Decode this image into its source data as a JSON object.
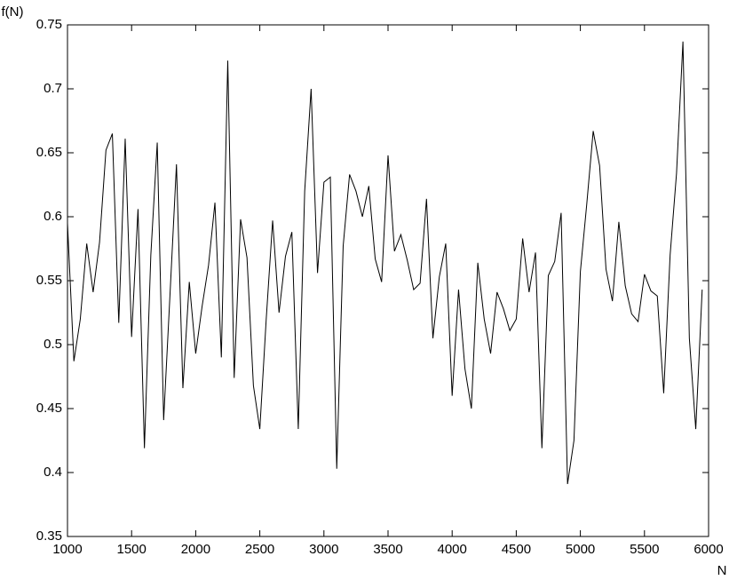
{
  "chart_data": {
    "type": "line",
    "ylabel": "f(N)",
    "xlabel": "N",
    "x": [
      1000,
      1050,
      1100,
      1150,
      1200,
      1250,
      1300,
      1350,
      1400,
      1450,
      1500,
      1550,
      1600,
      1650,
      1700,
      1750,
      1800,
      1850,
      1900,
      1950,
      2000,
      2050,
      2100,
      2150,
      2200,
      2250,
      2300,
      2350,
      2400,
      2450,
      2500,
      2550,
      2600,
      2650,
      2700,
      2750,
      2800,
      2850,
      2900,
      2950,
      3000,
      3050,
      3100,
      3150,
      3200,
      3250,
      3300,
      3350,
      3400,
      3450,
      3500,
      3550,
      3600,
      3650,
      3700,
      3750,
      3800,
      3850,
      3900,
      3950,
      4000,
      4050,
      4100,
      4150,
      4200,
      4250,
      4300,
      4350,
      4400,
      4450,
      4500,
      4550,
      4600,
      4650,
      4700,
      4750,
      4800,
      4850,
      4900,
      4950,
      5000,
      5050,
      5100,
      5150,
      5200,
      5250,
      5300,
      5350,
      5400,
      5450,
      5500,
      5550,
      5600,
      5650,
      5700,
      5750,
      5800,
      5850,
      5900,
      5950
    ],
    "series": [
      {
        "color": "#000000",
        "values": [
          0.595,
          0.487,
          0.52,
          0.579,
          0.541,
          0.58,
          0.652,
          0.665,
          0.517,
          0.661,
          0.506,
          0.606,
          0.419,
          0.57,
          0.658,
          0.441,
          0.54,
          0.641,
          0.466,
          0.549,
          0.493,
          0.53,
          0.562,
          0.611,
          0.49,
          0.722,
          0.474,
          0.598,
          0.568,
          0.468,
          0.434,
          0.52,
          0.597,
          0.525,
          0.569,
          0.588,
          0.434,
          0.62,
          0.7,
          0.556,
          0.627,
          0.631,
          0.403,
          0.577,
          0.633,
          0.62,
          0.6,
          0.624,
          0.567,
          0.549,
          0.648,
          0.573,
          0.586,
          0.566,
          0.543,
          0.548,
          0.614,
          0.505,
          0.553,
          0.579,
          0.46,
          0.543,
          0.481,
          0.45,
          0.564,
          0.52,
          0.493,
          0.541,
          0.528,
          0.511,
          0.52,
          0.583,
          0.541,
          0.572,
          0.419,
          0.554,
          0.565,
          0.603,
          0.391,
          0.425,
          0.557,
          0.61,
          0.667,
          0.64,
          0.559,
          0.534,
          0.596,
          0.546,
          0.524,
          0.518,
          0.555,
          0.542,
          0.538,
          0.462,
          0.57,
          0.634,
          0.737,
          0.505,
          0.434,
          0.543
        ]
      }
    ],
    "xlim": [
      1000,
      6000
    ],
    "xticks": [
      1000,
      1500,
      2000,
      2500,
      3000,
      3500,
      4000,
      4500,
      5000,
      5500,
      6000
    ],
    "ylim": [
      0.35,
      0.75
    ],
    "yticks": [
      0.35,
      0.4,
      0.45,
      0.5,
      0.55,
      0.6,
      0.65,
      0.7,
      0.75
    ]
  }
}
